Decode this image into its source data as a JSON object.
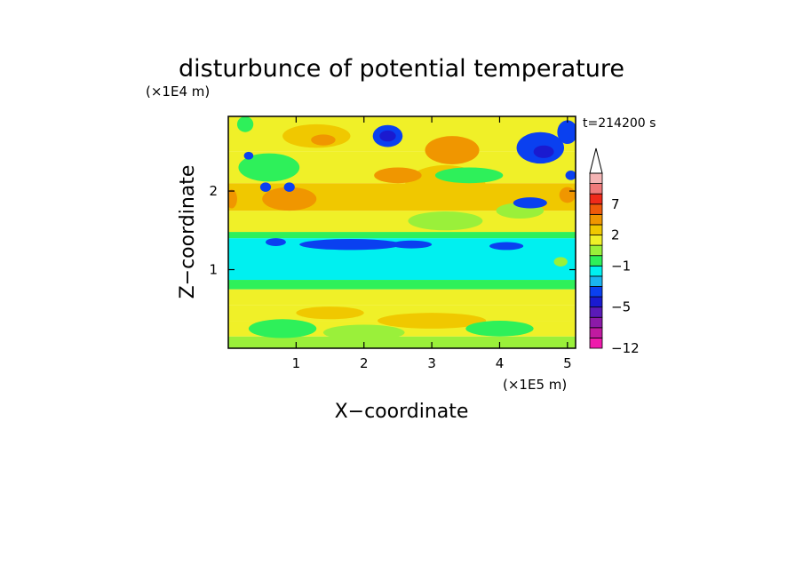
{
  "chart_data": {
    "type": "heatmap",
    "title": "disturbunce of potential temperature",
    "time_label": "t=214200 s",
    "xlabel": "X−coordinate",
    "ylabel": "Z−coordinate",
    "x_unit": "(×1E5 m)",
    "y_unit": "(×1E4 m)",
    "xlim": [
      0,
      5.12
    ],
    "ylim": [
      0,
      2.95
    ],
    "x_ticks": [
      1,
      2,
      3,
      4,
      5
    ],
    "y_ticks": [
      1,
      2
    ],
    "x_tick_labels": [
      "1",
      "2",
      "3",
      "4",
      "5"
    ],
    "y_tick_labels": [
      "1",
      "2"
    ],
    "colorbar": {
      "levels": [
        -12,
        -10,
        -8,
        -6,
        -5,
        -4,
        -3,
        -2,
        -1,
        0,
        1,
        2,
        3,
        5,
        7,
        9,
        11
      ],
      "tick_values": [
        -12,
        -5,
        -1,
        2,
        7
      ],
      "tick_labels": [
        "−12",
        "−5",
        "−1",
        "2",
        "7"
      ],
      "colors": [
        "#ee1aac",
        "#c01aa0",
        "#8c1aa8",
        "#5a1ab8",
        "#1a1ad0",
        "#0a40f0",
        "#1ab4f0",
        "#00f0f0",
        "#2ef05a",
        "#9af03a",
        "#f0f028",
        "#f0c800",
        "#f09600",
        "#f05a0a",
        "#f02a1a",
        "#f07a7a",
        "#f4b4b4"
      ],
      "extend": "max"
    },
    "bands": [
      {
        "z": [
          0.0,
          0.15
        ],
        "value": 0.5
      },
      {
        "z": [
          0.15,
          0.35
        ],
        "value": 1.2
      },
      {
        "z": [
          0.35,
          0.55
        ],
        "value": 1.6
      },
      {
        "z": [
          0.55,
          0.75
        ],
        "value": 1.2
      },
      {
        "z": [
          0.75,
          0.87
        ],
        "value": -0.3
      },
      {
        "z": [
          0.87,
          1.4
        ],
        "value": -1.4
      },
      {
        "z": [
          1.4,
          1.48
        ],
        "value": -0.5
      },
      {
        "z": [
          1.48,
          1.75
        ],
        "value": 1.5
      },
      {
        "z": [
          1.75,
          2.1
        ],
        "value": 2.2
      },
      {
        "z": [
          2.1,
          2.5
        ],
        "value": 1.6
      },
      {
        "z": [
          2.5,
          2.95
        ],
        "value": 1.0
      }
    ],
    "features": [
      {
        "x": 1.8,
        "z": 1.32,
        "rx": 0.75,
        "rz": 0.07,
        "value": -3.5
      },
      {
        "x": 0.7,
        "z": 1.35,
        "rx": 0.15,
        "rz": 0.05,
        "value": -3.5
      },
      {
        "x": 4.1,
        "z": 1.3,
        "rx": 0.25,
        "rz": 0.05,
        "value": -3.5
      },
      {
        "x": 2.7,
        "z": 1.32,
        "rx": 0.3,
        "rz": 0.05,
        "value": -3.5
      },
      {
        "x": 3.2,
        "z": 1.62,
        "rx": 0.55,
        "rz": 0.12,
        "value": 0.5
      },
      {
        "x": 4.3,
        "z": 1.75,
        "rx": 0.35,
        "rz": 0.1,
        "value": 0.5
      },
      {
        "x": 3.2,
        "z": 2.05,
        "rx": 0.6,
        "rz": 0.28,
        "value": 2.5
      },
      {
        "x": 3.3,
        "z": 2.52,
        "rx": 0.4,
        "rz": 0.18,
        "value": 4
      },
      {
        "x": 1.3,
        "z": 2.7,
        "rx": 0.5,
        "rz": 0.15,
        "value": 2.5
      },
      {
        "x": 1.4,
        "z": 2.65,
        "rx": 0.18,
        "rz": 0.07,
        "value": 4
      },
      {
        "x": 0.9,
        "z": 1.9,
        "rx": 0.4,
        "rz": 0.15,
        "value": 3
      },
      {
        "x": 2.5,
        "z": 2.2,
        "rx": 0.35,
        "rz": 0.1,
        "value": 3.5
      },
      {
        "x": 2.35,
        "z": 2.7,
        "rx": 0.22,
        "rz": 0.14,
        "value": -3.5
      },
      {
        "x": 2.35,
        "z": 2.7,
        "rx": 0.12,
        "rz": 0.07,
        "value": -4.5
      },
      {
        "x": 4.6,
        "z": 2.55,
        "rx": 0.35,
        "rz": 0.2,
        "value": -3.5
      },
      {
        "x": 4.65,
        "z": 2.5,
        "rx": 0.15,
        "rz": 0.08,
        "value": -4.5
      },
      {
        "x": 5.0,
        "z": 2.75,
        "rx": 0.15,
        "rz": 0.15,
        "value": -3.5
      },
      {
        "x": 0.25,
        "z": 2.85,
        "rx": 0.12,
        "rz": 0.1,
        "value": -0.5
      },
      {
        "x": 0.6,
        "z": 2.3,
        "rx": 0.45,
        "rz": 0.18,
        "value": -0.5
      },
      {
        "x": 0.55,
        "z": 2.05,
        "rx": 0.08,
        "rz": 0.06,
        "value": -3.5
      },
      {
        "x": 0.9,
        "z": 2.05,
        "rx": 0.08,
        "rz": 0.06,
        "value": -3.5
      },
      {
        "x": 0.3,
        "z": 2.45,
        "rx": 0.07,
        "rz": 0.05,
        "value": -3.5
      },
      {
        "x": 4.45,
        "z": 1.85,
        "rx": 0.25,
        "rz": 0.07,
        "value": -3.5
      },
      {
        "x": 3.55,
        "z": 2.2,
        "rx": 0.5,
        "rz": 0.1,
        "value": -0.5
      },
      {
        "x": 5.0,
        "z": 1.95,
        "rx": 0.12,
        "rz": 0.1,
        "value": 3.5
      },
      {
        "x": 5.05,
        "z": 2.2,
        "rx": 0.08,
        "rz": 0.06,
        "value": -3.5
      },
      {
        "x": 0.05,
        "z": 1.9,
        "rx": 0.08,
        "rz": 0.12,
        "value": 3.5
      },
      {
        "x": 4.9,
        "z": 1.1,
        "rx": 0.1,
        "rz": 0.06,
        "value": 0.5
      },
      {
        "x": 0.8,
        "z": 0.25,
        "rx": 0.5,
        "rz": 0.12,
        "value": -0.3
      },
      {
        "x": 2.0,
        "z": 0.2,
        "rx": 0.6,
        "rz": 0.1,
        "value": 0.5
      },
      {
        "x": 3.0,
        "z": 0.35,
        "rx": 0.8,
        "rz": 0.1,
        "value": 2.2
      },
      {
        "x": 4.0,
        "z": 0.25,
        "rx": 0.5,
        "rz": 0.1,
        "value": -0.3
      },
      {
        "x": 1.5,
        "z": 0.45,
        "rx": 0.5,
        "rz": 0.08,
        "value": 2.2
      }
    ]
  }
}
